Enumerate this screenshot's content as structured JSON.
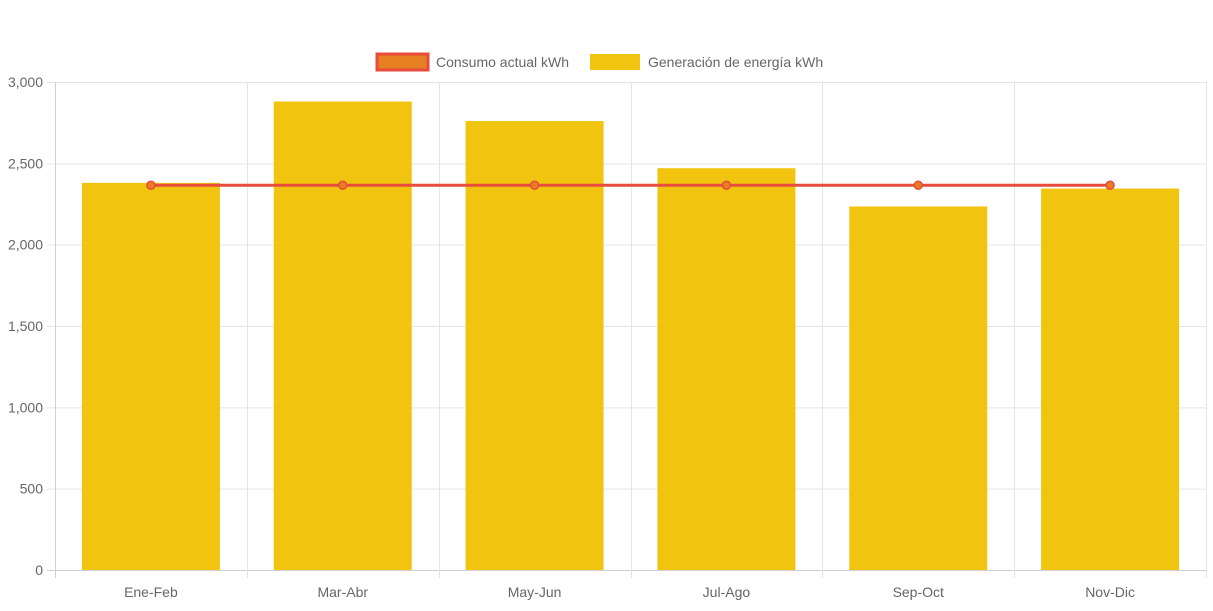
{
  "chart_data": {
    "type": "bar",
    "categories": [
      "Ene-Feb",
      "Mar-Abr",
      "May-Jun",
      "Jul-Ago",
      "Sep-Oct",
      "Nov-Dic"
    ],
    "series": [
      {
        "name": "Generación de energía kWh",
        "type": "bar",
        "color": "#f0c40f",
        "values": [
          2380,
          2880,
          2760,
          2470,
          2235,
          2345
        ]
      },
      {
        "name": "Consumo actual kWh",
        "type": "line",
        "color": "#e74c3c",
        "fill_color": "#e67e22",
        "values": [
          2365,
          2365,
          2365,
          2365,
          2365,
          2365
        ]
      }
    ],
    "ylim": [
      0,
      3000
    ],
    "yticks": [
      0,
      500,
      1000,
      1500,
      2000,
      2500,
      3000
    ],
    "ytick_labels": [
      "0",
      "500",
      "1,000",
      "1,500",
      "2,000",
      "2,500",
      "3,000"
    ],
    "grid": true,
    "legend_position": "top-center",
    "title": "",
    "xlabel": "",
    "ylabel": ""
  },
  "colors": {
    "grid": "#e5e5e5",
    "axis": "#d0d0d0",
    "tick_text": "#666666"
  }
}
